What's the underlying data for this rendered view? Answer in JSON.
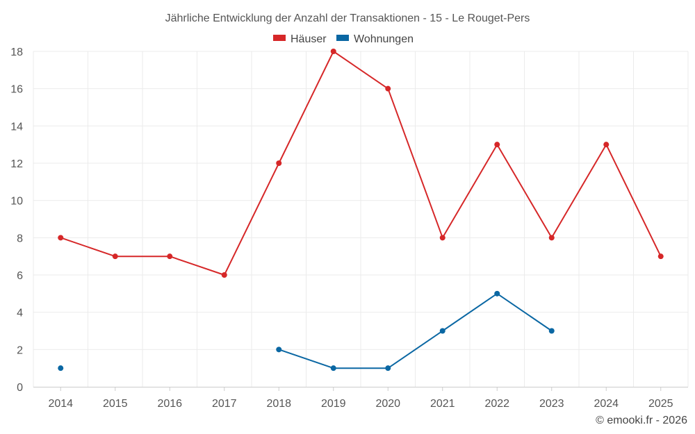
{
  "chart_data": {
    "type": "line",
    "title": "Jährliche Entwicklung der Anzahl der Transaktionen - 15 - Le Rouget-Pers",
    "xlabel": "",
    "ylabel": "",
    "categories": [
      "2014",
      "2015",
      "2016",
      "2017",
      "2018",
      "2019",
      "2020",
      "2021",
      "2022",
      "2023",
      "2024",
      "2025"
    ],
    "ylim": [
      0,
      18
    ],
    "yticks": [
      0,
      2,
      4,
      6,
      8,
      10,
      12,
      14,
      16,
      18
    ],
    "grid": true,
    "legend_position": "top-center",
    "series": [
      {
        "name": "Häuser",
        "color": "#d62728",
        "values": [
          8,
          7,
          7,
          6,
          12,
          18,
          16,
          8,
          13,
          8,
          13,
          7
        ]
      },
      {
        "name": "Wohnungen",
        "color": "#0a67a3",
        "values": [
          1,
          null,
          null,
          null,
          2,
          1,
          1,
          3,
          5,
          3,
          null,
          null
        ]
      }
    ]
  },
  "credit": "© emooki.fr - 2026"
}
